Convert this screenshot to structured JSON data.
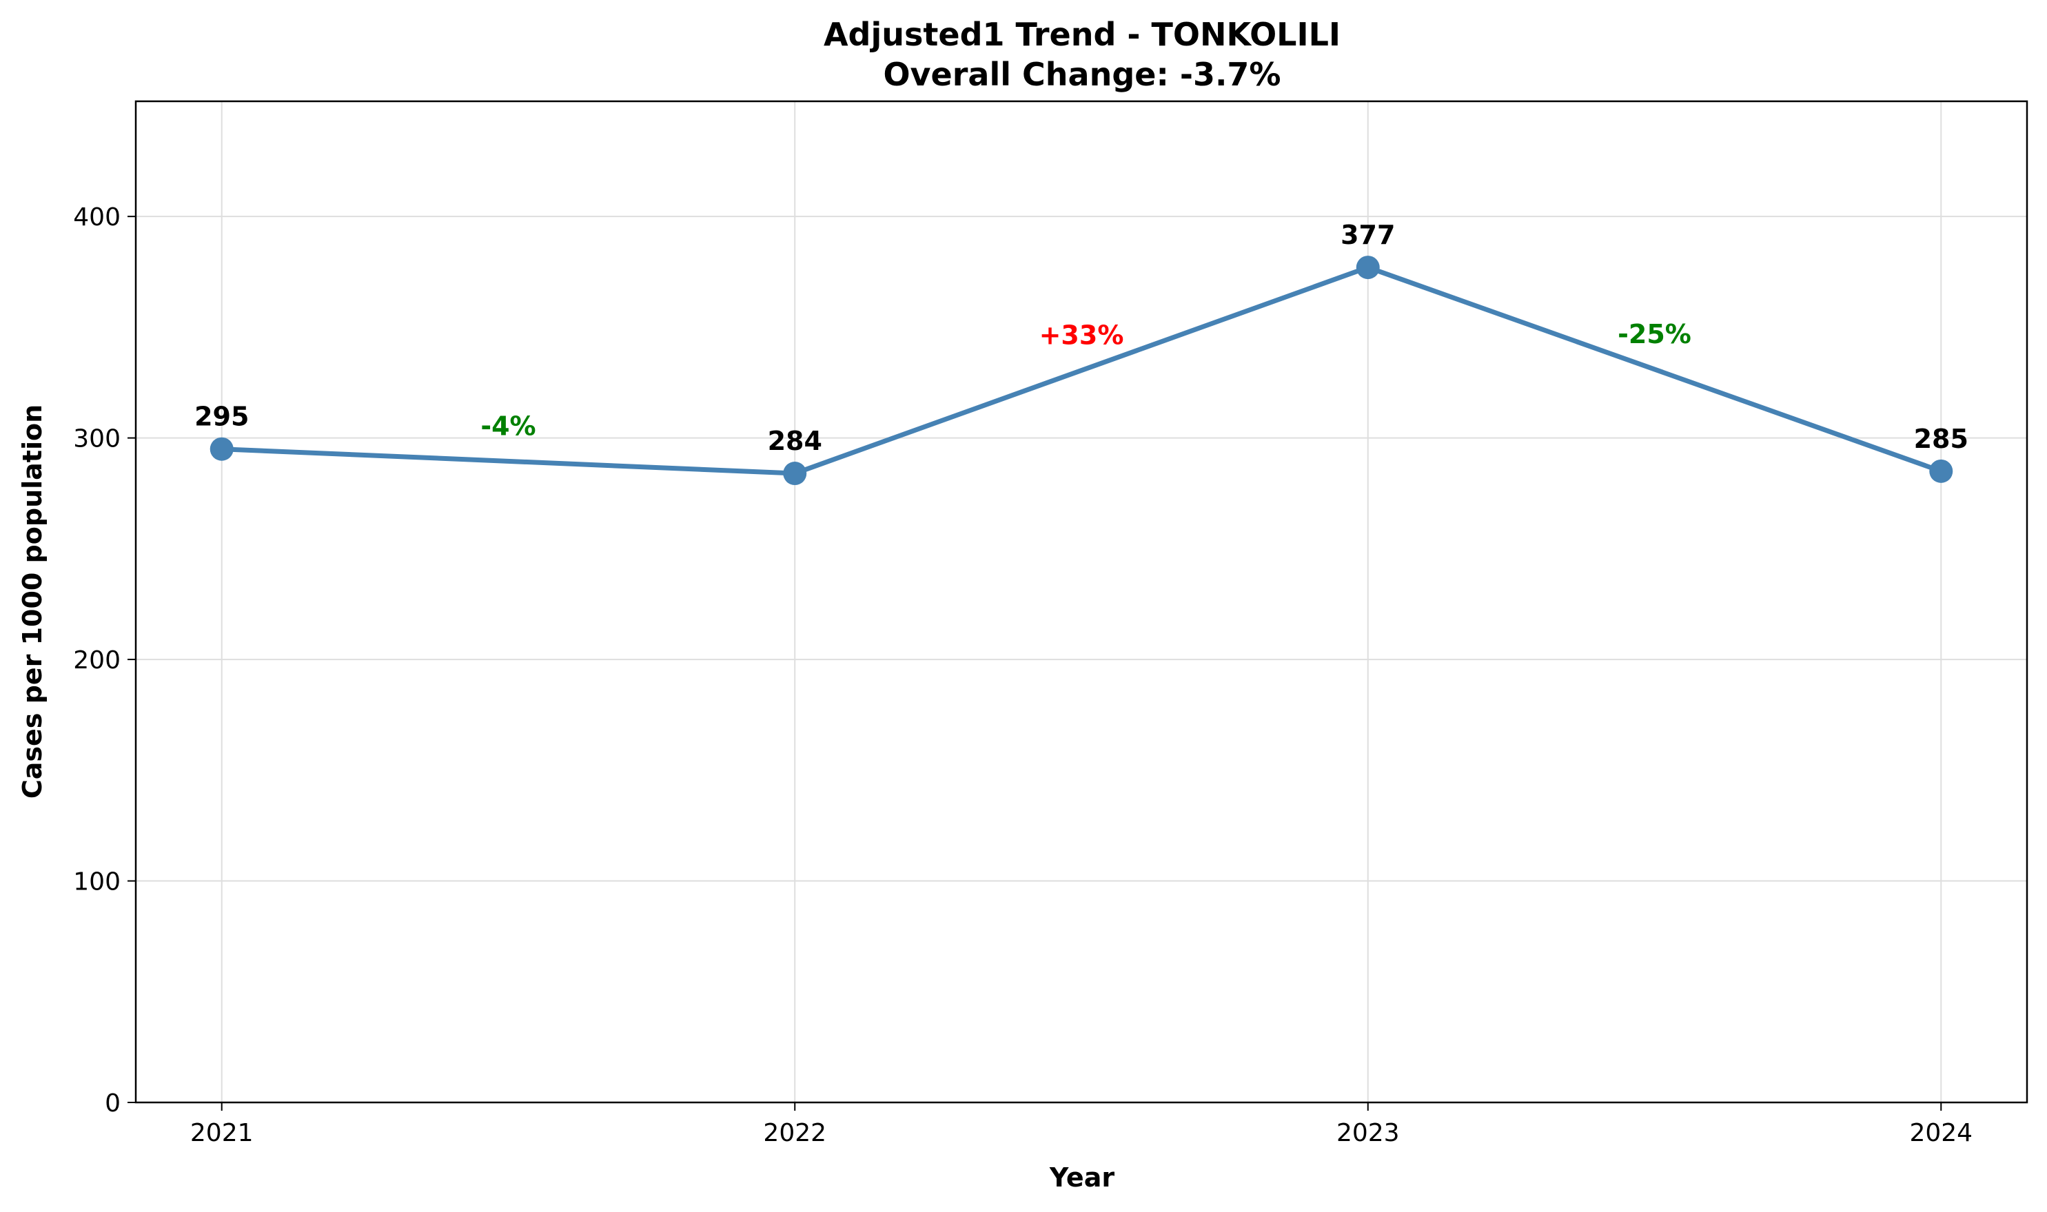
{
  "chart_data": {
    "type": "line",
    "title": "Adjusted1 Trend - TONKOLILI",
    "subtitle": "Overall Change: -3.7%",
    "xlabel": "Year",
    "ylabel": "Cases per 1000 population",
    "categories": [
      "2021",
      "2022",
      "2023",
      "2024"
    ],
    "series": [
      {
        "values": [
          295,
          284,
          377,
          285
        ],
        "color": "#4682b4"
      }
    ],
    "data_labels": [
      "295",
      "284",
      "377",
      "285"
    ],
    "change_labels": [
      {
        "text": "-4%",
        "color": "#008000"
      },
      {
        "text": "+33%",
        "color": "#ff0000"
      },
      {
        "text": "-25%",
        "color": "#008000"
      }
    ],
    "yticks": [
      0,
      100,
      200,
      300,
      400
    ],
    "ylim": [
      0,
      452
    ],
    "xlim": [
      -0.15,
      3.15
    ],
    "grid": true,
    "legend": "none"
  }
}
